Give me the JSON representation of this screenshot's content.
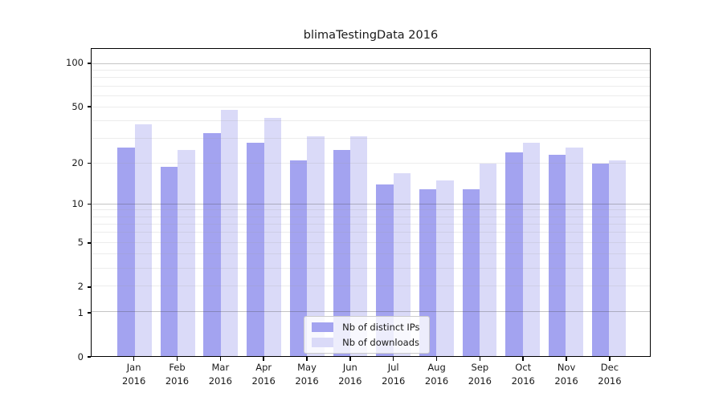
{
  "title": "blimaTestingData 2016",
  "chart_data": {
    "type": "bar",
    "title": "blimaTestingData 2016",
    "categories": [
      "Jan",
      "Feb",
      "Mar",
      "Apr",
      "May",
      "Jun",
      "Jul",
      "Aug",
      "Sep",
      "Oct",
      "Nov",
      "Dec"
    ],
    "year": "2016",
    "series": [
      {
        "name": "Nb of distinct IPs",
        "color": "#a3a3f0",
        "values": [
          26,
          19,
          33,
          28,
          21,
          25,
          14,
          13,
          13,
          24,
          23,
          20
        ]
      },
      {
        "name": "Nb of downloads",
        "color": "#dadaf8",
        "values": [
          38,
          25,
          48,
          42,
          31,
          31,
          17,
          15,
          20,
          28,
          26,
          21
        ]
      }
    ],
    "y_axis": {
      "scale": "log1p",
      "ticks": [
        0,
        1,
        2,
        5,
        10,
        20,
        50,
        100
      ],
      "max": 127,
      "major_gridlines": [
        1,
        10,
        100
      ],
      "minor_gridlines": [
        2,
        3,
        4,
        5,
        6,
        7,
        8,
        9,
        20,
        30,
        40,
        50,
        60,
        70,
        80,
        90
      ]
    },
    "grid": true,
    "legend": {
      "position": "inside-bottom-center",
      "entries": [
        "Nb of distinct IPs",
        "Nb of downloads"
      ]
    }
  }
}
